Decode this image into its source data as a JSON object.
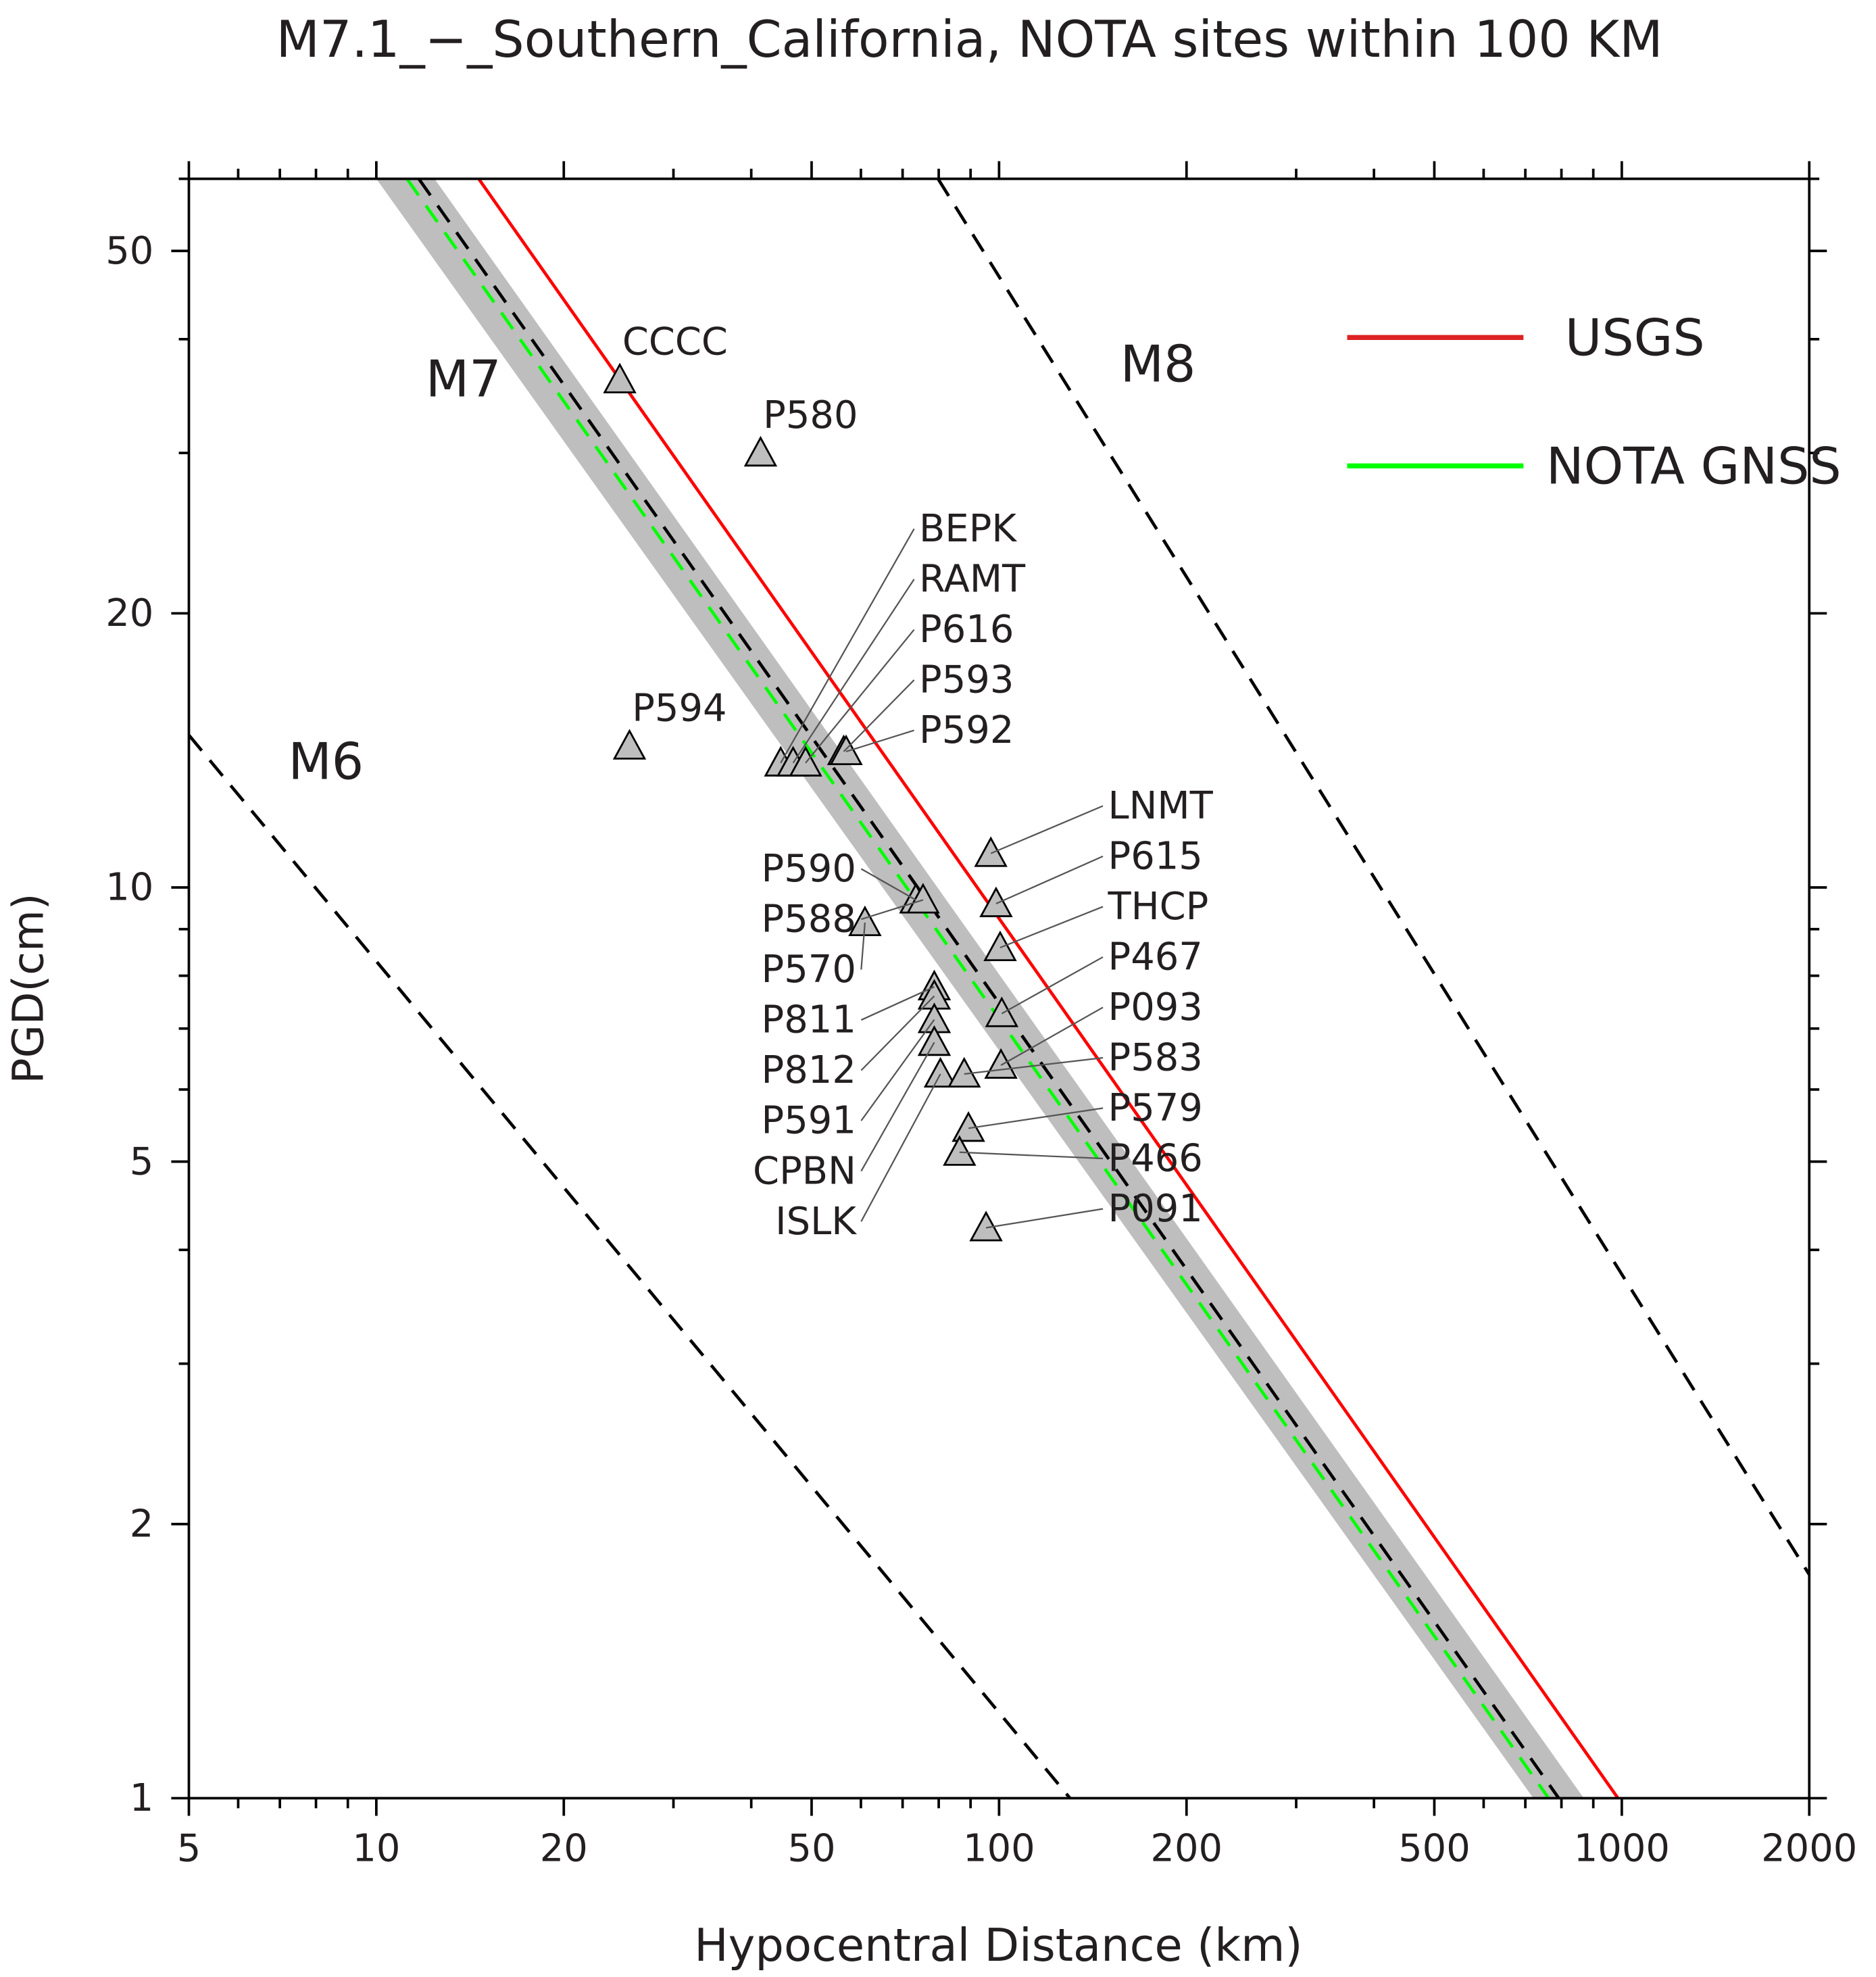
{
  "chart_data": {
    "type": "scatter",
    "title": "M7.1_−_Southern_California, NOTA sites within 100 KM",
    "xlabel": "Hypocentral Distance (km)",
    "ylabel": "PGD(cm)",
    "x_scale": "log",
    "y_scale": "log",
    "xlim": [
      5,
      2000
    ],
    "ylim": [
      1,
      60
    ],
    "x_ticks": [
      5,
      10,
      20,
      50,
      100,
      200,
      500,
      1000,
      2000
    ],
    "y_ticks": [
      1,
      2,
      5,
      10,
      20,
      50
    ],
    "grid": false,
    "legend_position": "top-right",
    "legend": [
      {
        "name": "USGS",
        "color": "#ff0000"
      },
      {
        "name": "NOTA GNSS",
        "color": "#00ff00"
      }
    ],
    "lines": [
      {
        "name": "USGS",
        "color": "#ff0000",
        "style": "solid",
        "points": [
          [
            14.6,
            60
          ],
          [
            986,
            1
          ]
        ]
      },
      {
        "name": "NOTA GNSS",
        "color": "#00ff00",
        "style": "dashed",
        "points": [
          [
            11.2,
            60
          ],
          [
            763,
            1
          ]
        ]
      },
      {
        "label": "M7",
        "color": "#000000",
        "style": "dashed",
        "points": [
          [
            11.7,
            60
          ],
          [
            792,
            1
          ]
        ]
      },
      {
        "label": "M6",
        "color": "#000000",
        "style": "dashed",
        "points": [
          [
            5,
            14.7
          ],
          [
            130,
            1
          ]
        ]
      },
      {
        "label": "M8",
        "color": "#000000",
        "style": "dashed",
        "points": [
          [
            79.8,
            60
          ],
          [
            2000,
            1.76
          ]
        ]
      }
    ],
    "uncertainty_band": {
      "color": "#bebebe",
      "lower": [
        [
          10.0,
          60
        ],
        [
          721,
          1
        ]
      ],
      "upper": [
        [
          12.4,
          60
        ],
        [
          869,
          1
        ]
      ]
    },
    "magnitude_labels": [
      {
        "text": "M6",
        "x": 8.3,
        "y": 13.8
      },
      {
        "text": "M7",
        "x": 13.8,
        "y": 36.3
      },
      {
        "text": "M8",
        "x": 180,
        "y": 37.7
      }
    ],
    "stations": [
      {
        "name": "CCCC",
        "x": 24.6,
        "y": 36.1
      },
      {
        "name": "P580",
        "x": 41.4,
        "y": 30.0
      },
      {
        "name": "P594",
        "x": 25.5,
        "y": 14.3
      },
      {
        "name": "BEPK",
        "x": 44.6,
        "y": 13.7
      },
      {
        "name": "RAMT",
        "x": 46.7,
        "y": 13.7
      },
      {
        "name": "P616",
        "x": 48.9,
        "y": 13.7
      },
      {
        "name": "P593",
        "x": 56.3,
        "y": 14.1
      },
      {
        "name": "P592",
        "x": 56.8,
        "y": 14.1
      },
      {
        "name": "P570",
        "x": 60.9,
        "y": 9.15
      },
      {
        "name": "P590",
        "x": 73.5,
        "y": 9.69
      },
      {
        "name": "P588",
        "x": 75.5,
        "y": 9.69
      },
      {
        "name": "LNMT",
        "x": 97.0,
        "y": 10.9
      },
      {
        "name": "P615",
        "x": 98.9,
        "y": 9.6
      },
      {
        "name": "THCP",
        "x": 100.4,
        "y": 8.59
      },
      {
        "name": "P811",
        "x": 78.7,
        "y": 7.78
      },
      {
        "name": "P812",
        "x": 78.7,
        "y": 7.6
      },
      {
        "name": "P591",
        "x": 78.7,
        "y": 7.16
      },
      {
        "name": "P467",
        "x": 101,
        "y": 7.27
      },
      {
        "name": "CPBN",
        "x": 78.7,
        "y": 6.76
      },
      {
        "name": "P093",
        "x": 100.7,
        "y": 6.38
      },
      {
        "name": "ISLK",
        "x": 80.5,
        "y": 6.24
      },
      {
        "name": "P583",
        "x": 87.9,
        "y": 6.24
      },
      {
        "name": "P579",
        "x": 89.3,
        "y": 5.44
      },
      {
        "name": "P466",
        "x": 86.4,
        "y": 5.12
      },
      {
        "name": "P091",
        "x": 95.3,
        "y": 4.23
      }
    ]
  }
}
